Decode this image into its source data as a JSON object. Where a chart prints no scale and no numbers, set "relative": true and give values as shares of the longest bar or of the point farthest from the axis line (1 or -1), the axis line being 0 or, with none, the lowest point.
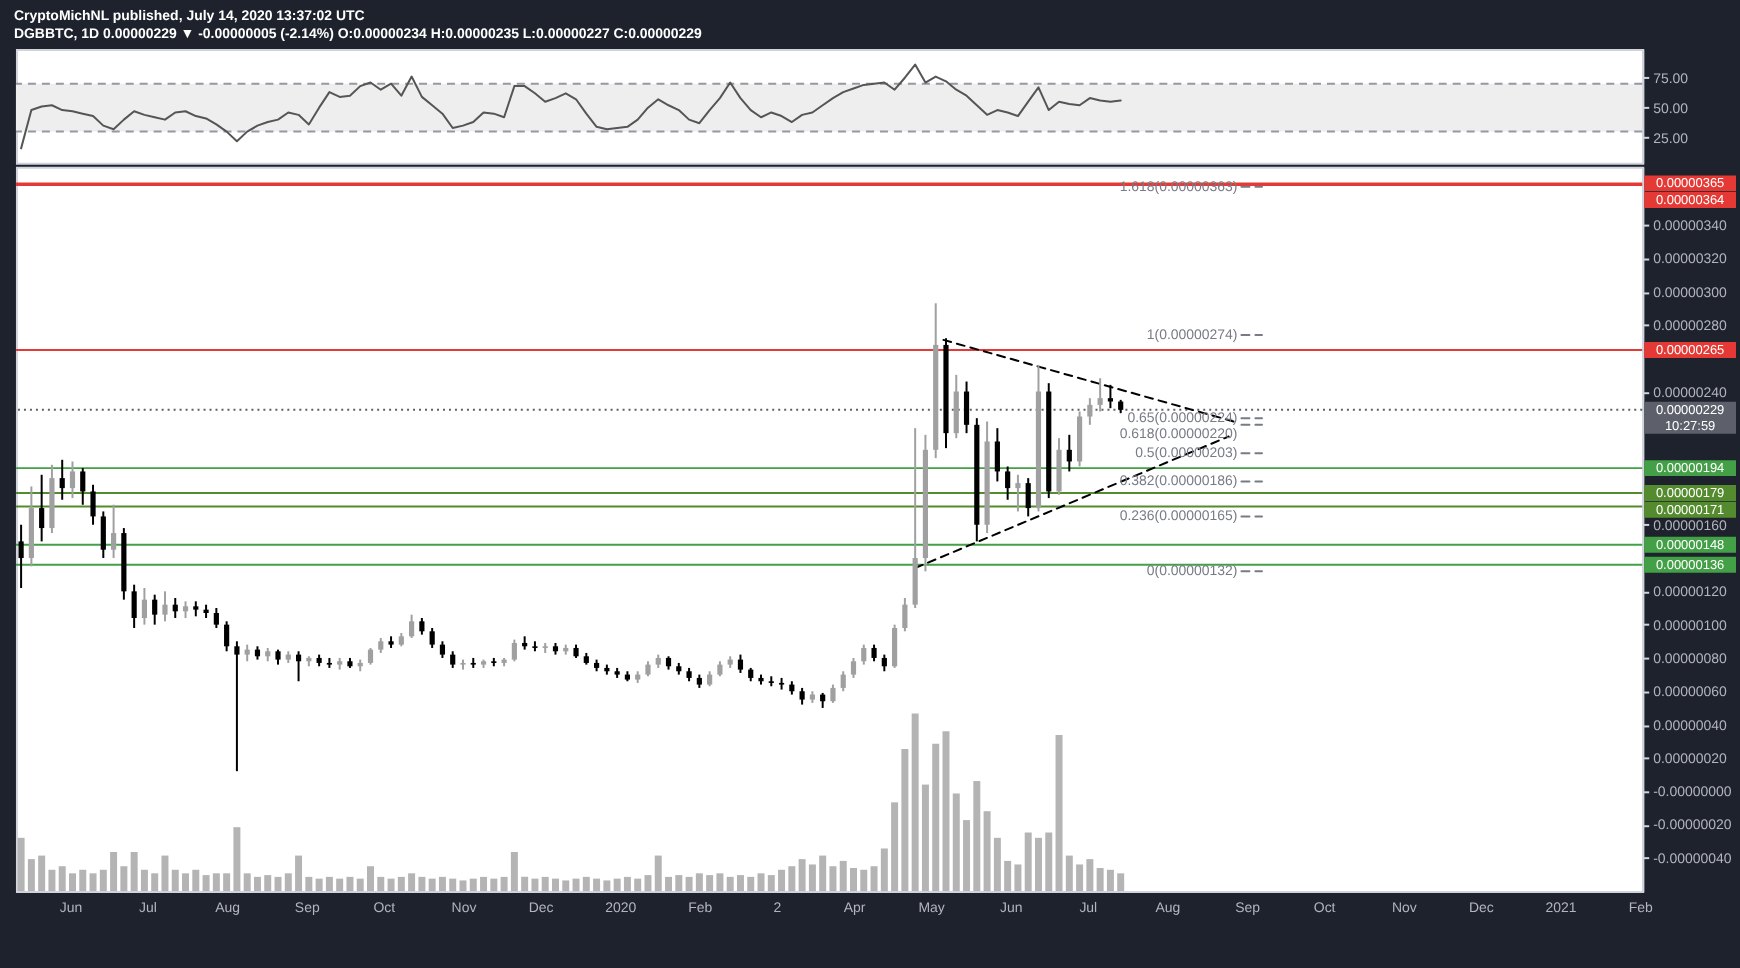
{
  "chart_data": [
    {
      "type": "line",
      "title": "CryptoMichNL published, July 14, 2020 13:37:02 UTC",
      "subtitle": "DGBBTC, 1D  0.00000229 ▼ -0.00000005 (-2.14%)  O:0.00000234 H:0.00000235 L:0.00000227 C:0.00000229",
      "x": [
        "2019-05-13",
        "2019-05-17",
        "2019-05-21",
        "2019-05-25",
        "2019-05-29",
        "2019-06-02",
        "2019-06-06",
        "2019-06-10",
        "2019-06-14",
        "2019-06-18",
        "2019-06-22",
        "2019-06-26",
        "2019-06-30",
        "2019-07-04",
        "2019-07-08",
        "2019-07-12",
        "2019-07-16",
        "2019-07-20",
        "2019-07-24",
        "2019-07-28",
        "2019-08-01",
        "2019-08-05",
        "2019-08-09",
        "2019-08-13",
        "2019-08-17",
        "2019-08-21",
        "2019-08-25",
        "2019-08-29",
        "2019-09-02",
        "2019-09-06",
        "2019-09-10",
        "2019-09-14",
        "2019-09-18",
        "2019-09-22",
        "2019-09-26",
        "2019-09-30",
        "2019-10-04",
        "2019-10-08",
        "2019-10-12",
        "2019-10-16",
        "2019-10-20",
        "2019-10-24",
        "2019-10-28",
        "2019-11-01",
        "2019-11-05",
        "2019-11-09",
        "2019-11-13",
        "2019-11-17",
        "2019-11-21",
        "2019-11-25",
        "2019-11-29",
        "2019-12-03",
        "2019-12-07",
        "2019-12-11",
        "2019-12-15",
        "2019-12-19",
        "2019-12-23",
        "2019-12-27",
        "2019-12-31",
        "2020-01-04",
        "2020-01-08",
        "2020-01-12",
        "2020-01-16",
        "2020-01-20",
        "2020-01-24",
        "2020-01-28",
        "2020-02-01",
        "2020-02-05",
        "2020-02-09",
        "2020-02-13",
        "2020-02-17",
        "2020-02-21",
        "2020-02-25",
        "2020-02-29",
        "2020-03-04",
        "2020-03-08",
        "2020-03-12",
        "2020-03-16",
        "2020-03-20",
        "2020-03-24",
        "2020-03-28",
        "2020-04-01",
        "2020-04-05",
        "2020-04-09",
        "2020-04-13",
        "2020-04-17",
        "2020-04-21",
        "2020-04-25",
        "2020-04-29",
        "2020-05-03",
        "2020-05-07",
        "2020-05-11",
        "2020-05-15",
        "2020-05-19",
        "2020-05-23",
        "2020-05-27",
        "2020-05-31",
        "2020-06-04",
        "2020-06-08",
        "2020-06-12",
        "2020-06-16",
        "2020-06-20",
        "2020-06-24",
        "2020-06-28",
        "2020-07-02",
        "2020-07-06",
        "2020-07-10",
        "2020-07-14"
      ],
      "values": [
        16,
        48,
        51,
        52,
        48,
        47,
        45,
        43,
        35,
        32,
        40,
        47,
        44,
        42,
        40,
        46,
        47,
        43,
        41,
        36,
        30,
        22,
        30,
        35,
        38,
        40,
        46,
        44,
        36,
        50,
        63,
        59,
        60,
        68,
        71,
        65,
        70,
        60,
        76,
        59,
        52,
        45,
        33,
        35,
        38,
        46,
        45,
        42,
        68,
        68,
        62,
        55,
        58,
        62,
        57,
        45,
        34,
        32,
        33,
        34,
        40,
        50,
        57,
        52,
        48,
        40,
        37,
        48,
        58,
        71,
        58,
        48,
        42,
        46,
        43,
        38,
        44,
        46,
        52,
        58,
        63,
        66,
        69,
        70,
        71,
        65,
        75,
        86,
        71,
        76,
        72,
        65,
        60,
        52,
        44,
        48,
        46,
        43,
        55,
        67,
        48,
        55,
        53,
        52,
        58,
        56,
        55,
        56
      ],
      "color": "#555555",
      "ylim": [
        4,
        99
      ],
      "yticks": [
        {
          "value": 25,
          "label": "25.00"
        },
        {
          "value": 50,
          "label": "50.00"
        },
        {
          "value": 75,
          "label": "75.00"
        }
      ],
      "bands": [
        {
          "axis": "y",
          "from": 30,
          "to": 70,
          "color": "#eeeeee"
        }
      ],
      "ref_lines": [
        {
          "axis": "y",
          "value": 70,
          "color": "#9598a1",
          "line_style": "dashed"
        },
        {
          "axis": "y",
          "value": 30,
          "color": "#9598a1",
          "line_style": "dashed"
        }
      ],
      "xlim": [
        "2019-05-11",
        "2021-02-02"
      ],
      "tick_labels": "y"
    },
    {
      "type": "candlestick",
      "x": [
        "2019-05-13",
        "2019-05-17",
        "2019-05-21",
        "2019-05-25",
        "2019-05-29",
        "2019-06-02",
        "2019-06-06",
        "2019-06-10",
        "2019-06-14",
        "2019-06-18",
        "2019-06-22",
        "2019-06-26",
        "2019-06-30",
        "2019-07-04",
        "2019-07-08",
        "2019-07-12",
        "2019-07-16",
        "2019-07-20",
        "2019-07-24",
        "2019-07-28",
        "2019-08-01",
        "2019-08-05",
        "2019-08-09",
        "2019-08-13",
        "2019-08-17",
        "2019-08-21",
        "2019-08-25",
        "2019-08-29",
        "2019-09-02",
        "2019-09-06",
        "2019-09-10",
        "2019-09-14",
        "2019-09-18",
        "2019-09-22",
        "2019-09-26",
        "2019-09-30",
        "2019-10-04",
        "2019-10-08",
        "2019-10-12",
        "2019-10-16",
        "2019-10-20",
        "2019-10-24",
        "2019-10-28",
        "2019-11-01",
        "2019-11-05",
        "2019-11-09",
        "2019-11-13",
        "2019-11-17",
        "2019-11-21",
        "2019-11-25",
        "2019-11-29",
        "2019-12-03",
        "2019-12-07",
        "2019-12-11",
        "2019-12-15",
        "2019-12-19",
        "2019-12-23",
        "2019-12-27",
        "2019-12-31",
        "2020-01-04",
        "2020-01-08",
        "2020-01-12",
        "2020-01-16",
        "2020-01-20",
        "2020-01-24",
        "2020-01-28",
        "2020-02-01",
        "2020-02-05",
        "2020-02-09",
        "2020-02-13",
        "2020-02-17",
        "2020-02-21",
        "2020-02-25",
        "2020-02-29",
        "2020-03-04",
        "2020-03-08",
        "2020-03-12",
        "2020-03-16",
        "2020-03-20",
        "2020-03-24",
        "2020-03-28",
        "2020-04-01",
        "2020-04-05",
        "2020-04-09",
        "2020-04-13",
        "2020-04-17",
        "2020-04-21",
        "2020-04-25",
        "2020-04-29",
        "2020-05-03",
        "2020-05-07",
        "2020-05-11",
        "2020-05-15",
        "2020-05-19",
        "2020-05-23",
        "2020-05-27",
        "2020-05-31",
        "2020-06-04",
        "2020-06-08",
        "2020-06-12",
        "2020-06-16",
        "2020-06-20",
        "2020-06-24",
        "2020-06-28",
        "2020-07-02",
        "2020-07-06",
        "2020-07-10",
        "2020-07-14"
      ],
      "ohlc": [
        [
          1.5e-06,
          1.6e-06,
          1.22e-06,
          1.4e-06
        ],
        [
          1.4e-06,
          1.83e-06,
          1.35e-06,
          1.7e-06
        ],
        [
          1.7e-06,
          1.9e-06,
          1.5e-06,
          1.58e-06
        ],
        [
          1.58e-06,
          1.96e-06,
          1.55e-06,
          1.88e-06
        ],
        [
          1.88e-06,
          1.99e-06,
          1.75e-06,
          1.82e-06
        ],
        [
          1.82e-06,
          1.98e-06,
          1.76e-06,
          1.92e-06
        ],
        [
          1.92e-06,
          1.94e-06,
          1.72e-06,
          1.8e-06
        ],
        [
          1.8e-06,
          1.84e-06,
          1.6e-06,
          1.65e-06
        ],
        [
          1.65e-06,
          1.68e-06,
          1.4e-06,
          1.45e-06
        ],
        [
          1.45e-06,
          1.72e-06,
          1.4e-06,
          1.55e-06
        ],
        [
          1.55e-06,
          1.58e-06,
          1.15e-06,
          1.2e-06
        ],
        [
          1.2e-06,
          1.24e-06,
          9.8e-07,
          1.04e-06
        ],
        [
          1.04e-06,
          1.22e-06,
          1e-06,
          1.15e-06
        ],
        [
          1.15e-06,
          1.18e-06,
          1e-06,
          1.06e-06
        ],
        [
          1.06e-06,
          1.2e-06,
          1.02e-06,
          1.12e-06
        ],
        [
          1.12e-06,
          1.16e-06,
          1.04e-06,
          1.08e-06
        ],
        [
          1.08e-06,
          1.14e-06,
          1.04e-06,
          1.11e-06
        ],
        [
          1.11e-06,
          1.14e-06,
          1.05e-06,
          1.09e-06
        ],
        [
          1.09e-06,
          1.12e-06,
          1.04e-06,
          1.07e-06
        ],
        [
          1.07e-06,
          1.1e-06,
          9.8e-07,
          1e-06
        ],
        [
          1e-06,
          1.02e-06,
          8.4e-07,
          8.7e-07
        ],
        [
          8.7e-07,
          9e-07,
          1.2e-07,
          8.2e-07
        ],
        [
          8.2e-07,
          8.8e-07,
          7.8e-07,
          8.5e-07
        ],
        [
          8.5e-07,
          8.7e-07,
          7.9e-07,
          8.1e-07
        ],
        [
          8.1e-07,
          8.6e-07,
          7.8e-07,
          8.4e-07
        ],
        [
          8.4e-07,
          8.5e-07,
          7.6e-07,
          7.9e-07
        ],
        [
          7.9e-07,
          8.4e-07,
          7.7e-07,
          8.2e-07
        ],
        [
          8.2e-07,
          8.4e-07,
          6.6e-07,
          7.8e-07
        ],
        [
          7.8e-07,
          8.1e-07,
          7.5e-07,
          8e-07
        ],
        [
          8e-07,
          8.2e-07,
          7.5e-07,
          7.7e-07
        ],
        [
          7.7e-07,
          8e-07,
          7.4e-07,
          7.6e-07
        ],
        [
          7.6e-07,
          8e-07,
          7.3e-07,
          7.8e-07
        ],
        [
          7.8e-07,
          8e-07,
          7.4e-07,
          7.5e-07
        ],
        [
          7.5e-07,
          7.9e-07,
          7.2e-07,
          7.7e-07
        ],
        [
          7.7e-07,
          8.6e-07,
          7.6e-07,
          8.5e-07
        ],
        [
          8.5e-07,
          9.2e-07,
          8.3e-07,
          9e-07
        ],
        [
          9e-07,
          9.3e-07,
          8.6e-07,
          8.8e-07
        ],
        [
          8.8e-07,
          9.5e-07,
          8.7e-07,
          9.3e-07
        ],
        [
          9.3e-07,
          1.06e-06,
          9.2e-07,
          1.02e-06
        ],
        [
          1.02e-06,
          1.04e-06,
          9.4e-07,
          9.6e-07
        ],
        [
          9.6e-07,
          9.8e-07,
          8.6e-07,
          8.8e-07
        ],
        [
          8.8e-07,
          9e-07,
          8e-07,
          8.2e-07
        ],
        [
          8.2e-07,
          8.4e-07,
          7.4e-07,
          7.6e-07
        ],
        [
          7.6e-07,
          7.9e-07,
          7.3e-07,
          7.7e-07
        ],
        [
          7.7e-07,
          8e-07,
          7.4e-07,
          7.6e-07
        ],
        [
          7.6e-07,
          7.9e-07,
          7.4e-07,
          7.8e-07
        ],
        [
          7.8e-07,
          8e-07,
          7.5e-07,
          7.7e-07
        ],
        [
          7.7e-07,
          8e-07,
          7.5e-07,
          7.9e-07
        ],
        [
          7.9e-07,
          9.1e-07,
          7.8e-07,
          8.9e-07
        ],
        [
          8.9e-07,
          9.3e-07,
          8.5e-07,
          8.7e-07
        ],
        [
          8.7e-07,
          9e-07,
          8.4e-07,
          8.6e-07
        ],
        [
          8.6e-07,
          8.9e-07,
          8.3e-07,
          8.7e-07
        ],
        [
          8.7e-07,
          8.9e-07,
          8.2e-07,
          8.4e-07
        ],
        [
          8.4e-07,
          8.8e-07,
          8.2e-07,
          8.6e-07
        ],
        [
          8.6e-07,
          8.8e-07,
          8e-07,
          8.1e-07
        ],
        [
          8.1e-07,
          8.3e-07,
          7.6e-07,
          7.7e-07
        ],
        [
          7.7e-07,
          7.9e-07,
          7.2e-07,
          7.4e-07
        ],
        [
          7.4e-07,
          7.6e-07,
          7e-07,
          7.2e-07
        ],
        [
          7.2e-07,
          7.4e-07,
          6.8e-07,
          7e-07
        ],
        [
          7e-07,
          7.2e-07,
          6.6e-07,
          6.7e-07
        ],
        [
          6.7e-07,
          7.2e-07,
          6.5e-07,
          7e-07
        ],
        [
          7e-07,
          7.8e-07,
          6.9e-07,
          7.6e-07
        ],
        [
          7.6e-07,
          8.2e-07,
          7.4e-07,
          8e-07
        ],
        [
          8e-07,
          8.1e-07,
          7.3e-07,
          7.5e-07
        ],
        [
          7.5e-07,
          7.7e-07,
          7e-07,
          7.2e-07
        ],
        [
          7.2e-07,
          7.4e-07,
          6.6e-07,
          6.8e-07
        ],
        [
          6.8e-07,
          7e-07,
          6.2e-07,
          6.4e-07
        ],
        [
          6.4e-07,
          7.2e-07,
          6.3e-07,
          7e-07
        ],
        [
          7e-07,
          7.8e-07,
          6.9e-07,
          7.6e-07
        ],
        [
          7.6e-07,
          8.1e-07,
          7.4e-07,
          7.9e-07
        ],
        [
          7.9e-07,
          8.2e-07,
          7.1e-07,
          7.3e-07
        ],
        [
          7.3e-07,
          7.4e-07,
          6.6e-07,
          6.8e-07
        ],
        [
          6.8e-07,
          7e-07,
          6.4e-07,
          6.6e-07
        ],
        [
          6.6e-07,
          6.9e-07,
          6.3e-07,
          6.5e-07
        ],
        [
          6.5e-07,
          6.8e-07,
          6.1e-07,
          6.4e-07
        ],
        [
          6.4e-07,
          6.6e-07,
          5.8e-07,
          6e-07
        ],
        [
          6e-07,
          6.2e-07,
          5.2e-07,
          5.5e-07
        ],
        [
          5.5e-07,
          6e-07,
          5.3e-07,
          5.8e-07
        ],
        [
          5.8e-07,
          5.9e-07,
          5e-07,
          5.4e-07
        ],
        [
          5.4e-07,
          6.4e-07,
          5.3e-07,
          6.2e-07
        ],
        [
          6.2e-07,
          7.2e-07,
          6e-07,
          7e-07
        ],
        [
          7e-07,
          8e-07,
          6.8e-07,
          7.8e-07
        ],
        [
          7.8e-07,
          8.8e-07,
          7.6e-07,
          8.6e-07
        ],
        [
          8.6e-07,
          8.8e-07,
          7.8e-07,
          8e-07
        ],
        [
          8e-07,
          8.2e-07,
          7.2e-07,
          7.5e-07
        ],
        [
          7.5e-07,
          1e-06,
          7.4e-07,
          9.8e-07
        ],
        [
          9.8e-07,
          1.16e-06,
          9.6e-07,
          1.12e-06
        ],
        [
          1.12e-06,
          2.18e-06,
          1.1e-06,
          1.4e-06
        ],
        [
          1.4e-06,
          2.14e-06,
          1.32e-06,
          2.05e-06
        ],
        [
          2.05e-06,
          2.93e-06,
          2e-06,
          2.68e-06
        ],
        [
          2.68e-06,
          2.72e-06,
          2.06e-06,
          2.15e-06
        ],
        [
          2.15e-06,
          2.5e-06,
          2.12e-06,
          2.4e-06
        ],
        [
          2.4e-06,
          2.46e-06,
          2.15e-06,
          2.2e-06
        ],
        [
          2.2e-06,
          2.24e-06,
          1.5e-06,
          1.6e-06
        ],
        [
          1.6e-06,
          2.22e-06,
          1.55e-06,
          2.1e-06
        ],
        [
          2.1e-06,
          2.18e-06,
          1.86e-06,
          1.92e-06
        ],
        [
          1.92e-06,
          1.95e-06,
          1.75e-06,
          1.82e-06
        ],
        [
          1.82e-06,
          1.9e-06,
          1.68e-06,
          1.85e-06
        ],
        [
          1.85e-06,
          1.88e-06,
          1.65e-06,
          1.7e-06
        ],
        [
          1.7e-06,
          2.56e-06,
          1.68e-06,
          2.4e-06
        ],
        [
          2.4e-06,
          2.45e-06,
          1.76e-06,
          1.8e-06
        ],
        [
          1.8e-06,
          2.12e-06,
          1.78e-06,
          2.05e-06
        ],
        [
          2.05e-06,
          2.14e-06,
          1.92e-06,
          1.98e-06
        ],
        [
          1.98e-06,
          2.28e-06,
          1.95e-06,
          2.25e-06
        ],
        [
          2.25e-06,
          2.36e-06,
          2.2e-06,
          2.32e-06
        ],
        [
          2.32e-06,
          2.48e-06,
          2.28e-06,
          2.36e-06
        ],
        [
          2.36e-06,
          2.44e-06,
          2.3e-06,
          2.34e-06
        ],
        [
          2.34e-06,
          2.35e-06,
          2.27e-06,
          2.29e-06
        ]
      ],
      "colors": [
        "#000000",
        "#a0a0a0",
        "#000000",
        "#a0a0a0",
        "#000000",
        "#a0a0a0",
        "#000000",
        "#000000",
        "#000000",
        "#a0a0a0",
        "#000000",
        "#000000",
        "#a0a0a0",
        "#000000",
        "#a0a0a0",
        "#000000",
        "#a0a0a0",
        "#000000",
        "#000000",
        "#000000",
        "#000000",
        "#000000",
        "#a0a0a0",
        "#000000",
        "#a0a0a0",
        "#000000",
        "#a0a0a0",
        "#000000",
        "#a0a0a0",
        "#000000",
        "#000000",
        "#a0a0a0",
        "#000000",
        "#a0a0a0",
        "#a0a0a0",
        "#a0a0a0",
        "#000000",
        "#a0a0a0",
        "#a0a0a0",
        "#000000",
        "#000000",
        "#000000",
        "#000000",
        "#a0a0a0",
        "#000000",
        "#a0a0a0",
        "#000000",
        "#a0a0a0",
        "#a0a0a0",
        "#000000",
        "#000000",
        "#a0a0a0",
        "#000000",
        "#a0a0a0",
        "#000000",
        "#000000",
        "#000000",
        "#000000",
        "#000000",
        "#000000",
        "#a0a0a0",
        "#a0a0a0",
        "#a0a0a0",
        "#000000",
        "#000000",
        "#000000",
        "#000000",
        "#a0a0a0",
        "#a0a0a0",
        "#a0a0a0",
        "#000000",
        "#000000",
        "#000000",
        "#000000",
        "#000000",
        "#000000",
        "#000000",
        "#a0a0a0",
        "#000000",
        "#a0a0a0",
        "#a0a0a0",
        "#a0a0a0",
        "#a0a0a0",
        "#000000",
        "#000000",
        "#a0a0a0",
        "#a0a0a0",
        "#a0a0a0",
        "#a0a0a0",
        "#a0a0a0",
        "#000000",
        "#a0a0a0",
        "#000000",
        "#000000",
        "#a0a0a0",
        "#000000",
        "#000000",
        "#a0a0a0",
        "#000000",
        "#a0a0a0",
        "#000000",
        "#a0a0a0",
        "#000000",
        "#a0a0a0",
        "#a0a0a0",
        "#a0a0a0",
        "#000000",
        "#000000"
      ],
      "series": [
        {
          "type": "line",
          "x": [
            "2020-05-06",
            "2020-08-27"
          ],
          "values": [
            2.71e-06,
            2.22e-06
          ],
          "color": "#000000",
          "line_style": "dashed"
        },
        {
          "type": "line",
          "x": [
            "2020-04-25",
            "2020-08-25"
          ],
          "values": [
            1.34e-06,
            2.13e-06
          ],
          "color": "#000000",
          "line_style": "dashed"
        },
        {
          "type": "line",
          "name": "1.618(0.00000363)",
          "x": [
            "2020-08-30",
            "2020-09-07"
          ],
          "values": [
            3.63e-06,
            3.63e-06
          ],
          "color": "#787b86",
          "line_style": "dashed"
        },
        {
          "type": "line",
          "name": "1(0.00000274)",
          "x": [
            "2020-08-30",
            "2020-09-07"
          ],
          "values": [
            2.74e-06,
            2.74e-06
          ],
          "color": "#787b86",
          "line_style": "dashed"
        },
        {
          "type": "line",
          "name": "0.65(0.00000224)",
          "x": [
            "2020-08-30",
            "2020-09-07"
          ],
          "values": [
            2.24e-06,
            2.24e-06
          ],
          "color": "#787b86",
          "line_style": "dashed"
        },
        {
          "type": "line",
          "name": "0.618(0.00000220)",
          "x": [
            "2020-08-30",
            "2020-09-07"
          ],
          "values": [
            2.2e-06,
            2.2e-06
          ],
          "color": "#787b86",
          "line_style": "dashed"
        },
        {
          "type": "line",
          "name": "0.5(0.00000203)",
          "x": [
            "2020-08-30",
            "2020-09-07"
          ],
          "values": [
            2.03e-06,
            2.03e-06
          ],
          "color": "#787b86",
          "line_style": "dashed"
        },
        {
          "type": "line",
          "name": "0.382(0.00000186)",
          "x": [
            "2020-08-30",
            "2020-09-07"
          ],
          "values": [
            1.86e-06,
            1.86e-06
          ],
          "color": "#787b86",
          "line_style": "dashed"
        },
        {
          "type": "line",
          "name": "0.236(0.00000165)",
          "x": [
            "2020-08-30",
            "2020-09-07"
          ],
          "values": [
            1.65e-06,
            1.65e-06
          ],
          "color": "#787b86",
          "line_style": "dashed"
        },
        {
          "type": "line",
          "name": "0(0.00000132)",
          "x": [
            "2020-08-30",
            "2020-09-07"
          ],
          "values": [
            1.32e-06,
            1.32e-06
          ],
          "color": "#787b86",
          "line_style": "dashed"
        }
      ],
      "ylim": [
        -6e-07,
        3.75e-06
      ],
      "yticks": [
        {
          "value": 3.4e-06,
          "label": "0.00000340"
        },
        {
          "value": 3.2e-06,
          "label": "0.00000320"
        },
        {
          "value": 3e-06,
          "label": "0.00000300"
        },
        {
          "value": 2.8e-06,
          "label": "0.00000280"
        },
        {
          "value": 2.4e-06,
          "label": "0.00000240"
        },
        {
          "value": 1.6e-06,
          "label": "0.00000160"
        },
        {
          "value": 1.2e-06,
          "label": "0.00000120"
        },
        {
          "value": 1e-06,
          "label": "0.00000100"
        },
        {
          "value": 8e-07,
          "label": "0.00000080"
        },
        {
          "value": 6e-07,
          "label": "0.00000060"
        },
        {
          "value": 4e-07,
          "label": "0.00000040"
        },
        {
          "value": 2e-07,
          "label": "0.00000020"
        },
        {
          "value": 0,
          "label": "-0.00000000"
        },
        {
          "value": -2e-07,
          "label": "-0.00000020"
        },
        {
          "value": -4e-07,
          "label": "-0.00000040"
        }
      ],
      "xlim": [
        "2019-05-11",
        "2021-02-02"
      ],
      "xticks": [
        {
          "value": "2019-06-01",
          "label": "Jun"
        },
        {
          "value": "2019-07-01",
          "label": "Jul"
        },
        {
          "value": "2019-08-01",
          "label": "Aug"
        },
        {
          "value": "2019-09-01",
          "label": "Sep"
        },
        {
          "value": "2019-10-01",
          "label": "Oct"
        },
        {
          "value": "2019-11-01",
          "label": "Nov"
        },
        {
          "value": "2019-12-01",
          "label": "Dec"
        },
        {
          "value": "2020-01-01",
          "label": "2020"
        },
        {
          "value": "2020-02-01",
          "label": "Feb"
        },
        {
          "value": "2020-03-02",
          "label": "2"
        },
        {
          "value": "2020-04-01",
          "label": "Apr"
        },
        {
          "value": "2020-05-01",
          "label": "May"
        },
        {
          "value": "2020-06-01",
          "label": "Jun"
        },
        {
          "value": "2020-07-01",
          "label": "Jul"
        },
        {
          "value": "2020-08-01",
          "label": "Aug"
        },
        {
          "value": "2020-09-01",
          "label": "Sep"
        },
        {
          "value": "2020-10-01",
          "label": "Oct"
        },
        {
          "value": "2020-11-01",
          "label": "Nov"
        },
        {
          "value": "2020-12-01",
          "label": "Dec"
        },
        {
          "value": "2021-01-01",
          "label": "2021"
        },
        {
          "value": "2021-02-01",
          "label": "Feb"
        }
      ],
      "ref_lines": [
        {
          "axis": "y",
          "value": 3.65e-06,
          "label": "0.00000365",
          "color": "#e53935"
        },
        {
          "axis": "y",
          "value": 3.64e-06,
          "label": "0.00000364",
          "color": "#e53935"
        },
        {
          "axis": "y",
          "value": 2.65e-06,
          "label": "0.00000265",
          "color": "#e53935"
        },
        {
          "axis": "y",
          "value": 2.29e-06,
          "label": "0.00000229\n10:27:59",
          "color": "#5d606b",
          "line_style": "dotted"
        },
        {
          "axis": "y",
          "value": 1.94e-06,
          "label": "0.00000194",
          "color": "#43a047"
        },
        {
          "axis": "y",
          "value": 1.79e-06,
          "label": "0.00000179",
          "color": "#558b2f"
        },
        {
          "axis": "y",
          "value": 1.71e-06,
          "label": "0.00000171",
          "color": "#558b2f"
        },
        {
          "axis": "y",
          "value": 1.48e-06,
          "label": "0.00000148",
          "color": "#43a047"
        },
        {
          "axis": "y",
          "value": 1.36e-06,
          "label": "0.00000136",
          "color": "#43a047"
        }
      ]
    },
    {
      "type": "bar",
      "relative": true,
      "color": "#b4b4b4",
      "xlim": [
        "2019-05-11",
        "2021-02-02"
      ],
      "tick_labels": false,
      "x": [
        "2019-05-13",
        "2019-05-17",
        "2019-05-21",
        "2019-05-25",
        "2019-05-29",
        "2019-06-02",
        "2019-06-06",
        "2019-06-10",
        "2019-06-14",
        "2019-06-18",
        "2019-06-22",
        "2019-06-26",
        "2019-06-30",
        "2019-07-04",
        "2019-07-08",
        "2019-07-12",
        "2019-07-16",
        "2019-07-20",
        "2019-07-24",
        "2019-07-28",
        "2019-08-01",
        "2019-08-05",
        "2019-08-09",
        "2019-08-13",
        "2019-08-17",
        "2019-08-21",
        "2019-08-25",
        "2019-08-29",
        "2019-09-02",
        "2019-09-06",
        "2019-09-10",
        "2019-09-14",
        "2019-09-18",
        "2019-09-22",
        "2019-09-26",
        "2019-09-30",
        "2019-10-04",
        "2019-10-08",
        "2019-10-12",
        "2019-10-16",
        "2019-10-20",
        "2019-10-24",
        "2019-10-28",
        "2019-11-01",
        "2019-11-05",
        "2019-11-09",
        "2019-11-13",
        "2019-11-17",
        "2019-11-21",
        "2019-11-25",
        "2019-11-29",
        "2019-12-03",
        "2019-12-07",
        "2019-12-11",
        "2019-12-15",
        "2019-12-19",
        "2019-12-23",
        "2019-12-27",
        "2019-12-31",
        "2020-01-04",
        "2020-01-08",
        "2020-01-12",
        "2020-01-16",
        "2020-01-20",
        "2020-01-24",
        "2020-01-28",
        "2020-02-01",
        "2020-02-05",
        "2020-02-09",
        "2020-02-13",
        "2020-02-17",
        "2020-02-21",
        "2020-02-25",
        "2020-02-29",
        "2020-03-04",
        "2020-03-08",
        "2020-03-12",
        "2020-03-16",
        "2020-03-20",
        "2020-03-24",
        "2020-03-28",
        "2020-04-01",
        "2020-04-05",
        "2020-04-09",
        "2020-04-13",
        "2020-04-17",
        "2020-04-21",
        "2020-04-25",
        "2020-04-29",
        "2020-05-03",
        "2020-05-07",
        "2020-05-11",
        "2020-05-15",
        "2020-05-19",
        "2020-05-23",
        "2020-05-27",
        "2020-05-31",
        "2020-06-04",
        "2020-06-08",
        "2020-06-12",
        "2020-06-16",
        "2020-06-20",
        "2020-06-24",
        "2020-06-28",
        "2020-07-02",
        "2020-07-06",
        "2020-07-10",
        "2020-07-14"
      ],
      "values": [
        0.3,
        0.18,
        0.2,
        0.12,
        0.14,
        0.1,
        0.12,
        0.1,
        0.12,
        0.22,
        0.14,
        0.22,
        0.12,
        0.1,
        0.2,
        0.12,
        0.1,
        0.12,
        0.09,
        0.1,
        0.1,
        0.36,
        0.1,
        0.08,
        0.09,
        0.08,
        0.1,
        0.2,
        0.08,
        0.07,
        0.08,
        0.07,
        0.08,
        0.07,
        0.14,
        0.08,
        0.07,
        0.08,
        0.1,
        0.08,
        0.07,
        0.08,
        0.07,
        0.06,
        0.07,
        0.08,
        0.07,
        0.08,
        0.22,
        0.08,
        0.07,
        0.08,
        0.07,
        0.06,
        0.07,
        0.08,
        0.07,
        0.06,
        0.07,
        0.08,
        0.07,
        0.09,
        0.2,
        0.08,
        0.09,
        0.08,
        0.1,
        0.09,
        0.1,
        0.08,
        0.09,
        0.08,
        0.1,
        0.09,
        0.12,
        0.14,
        0.18,
        0.15,
        0.2,
        0.14,
        0.17,
        0.13,
        0.12,
        0.14,
        0.24,
        0.5,
        0.8,
        1,
        0.6,
        0.83,
        0.9,
        0.55,
        0.4,
        0.62,
        0.45,
        0.3,
        0.17,
        0.15,
        0.33,
        0.3,
        0.33,
        0.88,
        0.2,
        0.15,
        0.18,
        0.13,
        0.12,
        0.1
      ]
    }
  ]
}
